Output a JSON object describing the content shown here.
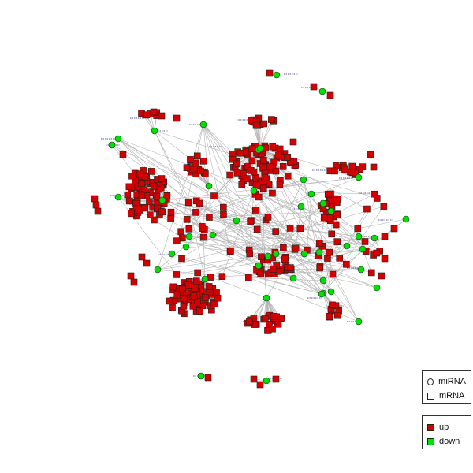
{
  "legend": {
    "shape": {
      "mirna_label": "miRNA",
      "mrna_label": "mRNA"
    },
    "regulation": {
      "up_label": "up",
      "down_label": "down",
      "up_color": "#d40000",
      "down_color": "#00e000"
    }
  },
  "style": {
    "edge_color": "#b3b3b3",
    "label_color": "#5a5aa0",
    "node_border": "#222222"
  }
}
